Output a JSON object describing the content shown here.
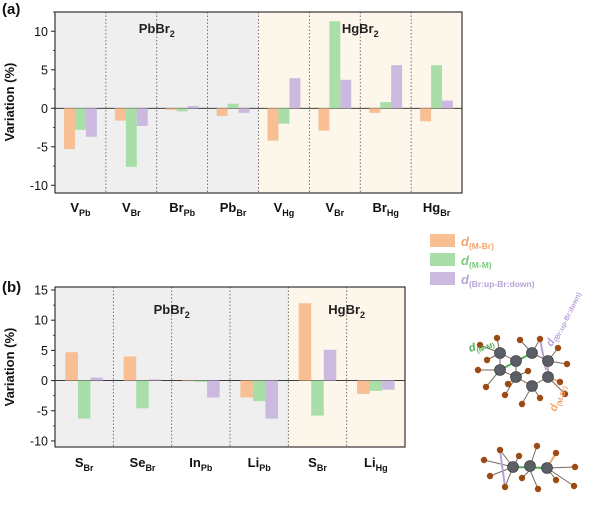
{
  "colors": {
    "shade_pbbr2": "#efefef",
    "shade_hgbr2": "#fdf6ea",
    "series_mbr": "#f7bf93",
    "series_mm": "#a9dea9",
    "series_brbr": "#cbb9df",
    "atom_metal": "#5a5f66",
    "atom_br": "#9b4a14",
    "bond": "#7a6a5a"
  },
  "legend": [
    {
      "letter": "d",
      "sub": "(M-Br)",
      "color": "#f7bf93",
      "text_color": "#f3a46a"
    },
    {
      "letter": "d",
      "sub": "(M-M)",
      "color": "#a9dea9",
      "text_color": "#7ccc7c"
    },
    {
      "letter": "d",
      "sub": "(Br:up-Br:down)",
      "color": "#cbb9df",
      "text_color": "#b7a2d6"
    }
  ],
  "molecule_labels": [
    {
      "letter": "d",
      "sub": "(M-M)",
      "color": "#4caf50"
    },
    {
      "letter": "d",
      "sub": "(Br:up-Br:down)",
      "color": "#b7a2d6"
    },
    {
      "letter": "d",
      "sub": "(M-Br)",
      "color": "#f3a46a"
    }
  ],
  "chart_data": [
    {
      "panel_label": "(a)",
      "type": "bar",
      "ylabel": "Variation (%)",
      "ylim": [
        -11,
        12.5
      ],
      "yticks": [
        -10,
        -5,
        0,
        5,
        10
      ],
      "tick_labels": [
        "-10",
        "-5",
        "0",
        "5",
        "10"
      ],
      "groups": [
        {
          "title": "PbBr",
          "sub": "2",
          "start": 0,
          "count": 4
        },
        {
          "title": "HgBr",
          "sub": "2",
          "start": 4,
          "count": 4
        }
      ],
      "categories": [
        {
          "main": "V",
          "sub": "Pb"
        },
        {
          "main": "V",
          "sub": "Br"
        },
        {
          "main": "Br",
          "sub": "Pb"
        },
        {
          "main": "Pb",
          "sub": "Br"
        },
        {
          "main": "V",
          "sub": "Hg"
        },
        {
          "main": "V",
          "sub": "Br"
        },
        {
          "main": "Br",
          "sub": "Hg"
        },
        {
          "main": "Hg",
          "sub": "Br"
        }
      ],
      "series": [
        {
          "key": "d(M-Br)",
          "values": [
            -5.3,
            -1.6,
            -0.2,
            -1.0,
            -4.2,
            -2.9,
            -0.6,
            -1.7
          ]
        },
        {
          "key": "d(M-M)",
          "values": [
            -2.8,
            -7.6,
            -0.4,
            0.6,
            -2.0,
            11.3,
            0.8,
            5.6
          ]
        },
        {
          "key": "d(Br:up-Br:down)",
          "values": [
            -3.7,
            -2.3,
            0.3,
            -0.6,
            3.9,
            3.7,
            5.6,
            1.0
          ]
        }
      ]
    },
    {
      "panel_label": "(b)",
      "type": "bar",
      "ylabel": "Variation (%)",
      "ylim": [
        -11,
        15.5
      ],
      "yticks": [
        -10,
        -5,
        0,
        5,
        10,
        15
      ],
      "tick_labels": [
        "-10",
        "-5",
        "0",
        "5",
        "10",
        "15"
      ],
      "groups": [
        {
          "title": "PbBr",
          "sub": "2",
          "start": 0,
          "count": 4
        },
        {
          "title": "HgBr",
          "sub": "2",
          "start": 4,
          "count": 2
        }
      ],
      "categories": [
        {
          "main": "S",
          "sub": "Br"
        },
        {
          "main": "Se",
          "sub": "Br"
        },
        {
          "main": "In",
          "sub": "Pb"
        },
        {
          "main": "Li",
          "sub": "Pb"
        },
        {
          "main": "S",
          "sub": "Br"
        },
        {
          "main": "Li",
          "sub": "Hg"
        }
      ],
      "series": [
        {
          "key": "d(M-Br)",
          "values": [
            4.7,
            4.0,
            -0.1,
            -2.8,
            12.8,
            -2.2
          ]
        },
        {
          "key": "d(M-M)",
          "values": [
            -6.3,
            -4.6,
            -0.2,
            -3.4,
            -5.8,
            -1.7
          ]
        },
        {
          "key": "d(Br:up-Br:down)",
          "values": [
            0.5,
            0.2,
            -2.8,
            -6.3,
            5.1,
            -1.5
          ]
        }
      ]
    }
  ]
}
